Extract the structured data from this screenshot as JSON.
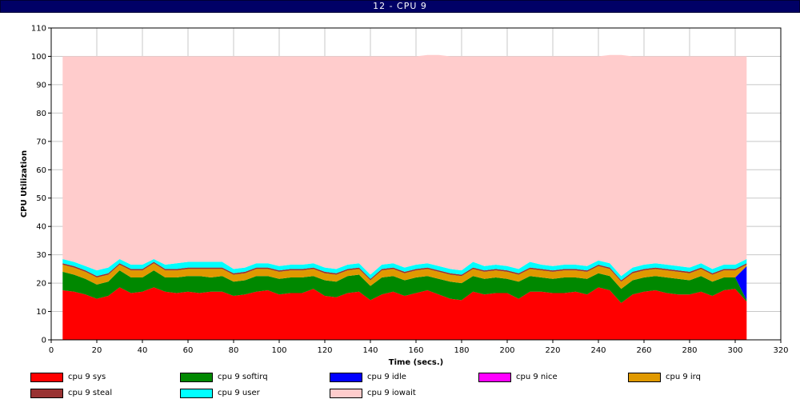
{
  "window": {
    "title": "12 - CPU 9"
  },
  "chart_data": {
    "type": "area",
    "stacked": true,
    "xlabel": "Time (secs.)",
    "ylabel": "CPU Utilization",
    "xlim": [
      0,
      320
    ],
    "ylim": [
      0,
      110
    ],
    "xticks": [
      0,
      20,
      40,
      60,
      80,
      100,
      120,
      140,
      160,
      180,
      200,
      220,
      240,
      260,
      280,
      300,
      320
    ],
    "yticks": [
      0,
      10,
      20,
      30,
      40,
      50,
      60,
      70,
      80,
      90,
      100,
      110
    ],
    "grid": true,
    "legend_position": "bottom",
    "x": [
      5,
      10,
      15,
      20,
      25,
      30,
      35,
      40,
      45,
      50,
      55,
      60,
      65,
      70,
      75,
      80,
      85,
      90,
      95,
      100,
      105,
      110,
      115,
      120,
      125,
      130,
      135,
      140,
      145,
      150,
      155,
      160,
      165,
      170,
      175,
      180,
      185,
      190,
      195,
      200,
      205,
      210,
      215,
      220,
      225,
      230,
      235,
      240,
      245,
      250,
      255,
      260,
      265,
      270,
      275,
      280,
      285,
      290,
      295,
      300,
      305
    ],
    "series": [
      {
        "name": "cpu 9 sys",
        "color": "#ff0000",
        "values": [
          17.5,
          17,
          16,
          14.5,
          15.5,
          18.5,
          16.5,
          17,
          18.5,
          17,
          16.5,
          17,
          16.5,
          17,
          17,
          15.5,
          16,
          17,
          17.5,
          16,
          16.5,
          16.5,
          18,
          15.5,
          15,
          16.5,
          17,
          14,
          16,
          17,
          15.5,
          16.5,
          17.5,
          16,
          14.5,
          14,
          17,
          16,
          16.5,
          16.5,
          14.5,
          17,
          17,
          16.5,
          16.5,
          17,
          16,
          18.5,
          17.5,
          13,
          16,
          17,
          17.5,
          16.5,
          16,
          16,
          17,
          15.5,
          17.5,
          18,
          13.5
        ]
      },
      {
        "name": "cpu 9 softirq",
        "color": "#008800",
        "values": [
          6.5,
          6,
          5.5,
          5,
          5,
          6,
          5.5,
          5,
          6,
          5,
          5.5,
          5.5,
          6,
          5,
          5.5,
          5,
          5,
          5.5,
          5,
          5.5,
          5.5,
          5.5,
          4.5,
          5.5,
          5.5,
          6,
          6,
          5,
          6,
          5.5,
          5.5,
          5.5,
          5,
          5.5,
          6,
          6,
          5.5,
          5.5,
          5.5,
          5,
          6,
          5.5,
          5,
          5,
          5.5,
          5,
          5.5,
          5,
          5,
          5,
          5,
          5,
          5,
          5.5,
          5.5,
          5,
          5.5,
          5,
          4.5,
          4,
          0.5
        ]
      },
      {
        "name": "cpu 9 idle",
        "color": "#0000ff",
        "values": [
          0,
          0,
          0,
          0,
          0,
          0,
          0,
          0,
          0,
          0,
          0,
          0,
          0,
          0,
          0,
          0,
          0,
          0,
          0,
          0,
          0,
          0,
          0,
          0,
          0,
          0,
          0,
          0,
          0,
          0,
          0,
          0,
          0,
          0,
          0,
          0,
          0,
          0,
          0,
          0,
          0,
          0,
          0,
          0,
          0,
          0,
          0,
          0,
          0,
          0,
          0,
          0,
          0,
          0,
          0,
          0,
          0,
          0,
          0,
          0,
          12
        ]
      },
      {
        "name": "cpu 9 nice",
        "color": "#ff00ff",
        "values": [
          0,
          0,
          0,
          0,
          0,
          0,
          0,
          0,
          0,
          0,
          0,
          0,
          0,
          0,
          0,
          0,
          0,
          0,
          0,
          0,
          0,
          0,
          0,
          0,
          0,
          0,
          0,
          0,
          0,
          0,
          0,
          0,
          0,
          0,
          0,
          0,
          0,
          0,
          0,
          0,
          0,
          0,
          0,
          0,
          0,
          0,
          0,
          0,
          0,
          0,
          0,
          0,
          0,
          0,
          0,
          0,
          0,
          0,
          0,
          0,
          0
        ]
      },
      {
        "name": "cpu 9 irq",
        "color": "#e09900",
        "values": [
          2.5,
          2.5,
          2.5,
          2.5,
          2.5,
          2,
          2.5,
          2.5,
          2.5,
          2.5,
          2.5,
          2.5,
          2.5,
          3,
          2.5,
          2.5,
          2.5,
          2.5,
          2.5,
          2.5,
          2.5,
          2.5,
          2.5,
          2.5,
          2.5,
          2,
          2,
          2,
          2.5,
          2.5,
          2.5,
          2.5,
          2.5,
          2.5,
          2.5,
          2.5,
          2.5,
          2.5,
          2.5,
          2.5,
          2.5,
          2.5,
          2.5,
          2.5,
          2.5,
          2.5,
          2.5,
          2.5,
          2.5,
          2.5,
          2.5,
          2.5,
          2.5,
          2.5,
          2.5,
          2.5,
          2.5,
          2.5,
          2.5,
          2.5,
          0.5
        ]
      },
      {
        "name": "cpu 9 steal",
        "color": "#993333",
        "values": [
          0.5,
          0.5,
          0.5,
          0.5,
          0.5,
          0.5,
          0.5,
          0.5,
          0.5,
          0.5,
          0.5,
          0.5,
          0.5,
          0.5,
          0.5,
          0.5,
          0.5,
          0.5,
          0.5,
          0.5,
          0.5,
          0.5,
          0.5,
          0.5,
          0.5,
          0.5,
          0.5,
          0.5,
          0.5,
          0.5,
          0.5,
          0.5,
          0.5,
          0.5,
          0.5,
          0.5,
          0.5,
          0.5,
          0.5,
          0.5,
          0.5,
          0.5,
          0.5,
          0.5,
          0.5,
          0.5,
          0.5,
          0.5,
          0.5,
          0.5,
          0.5,
          0.5,
          0.5,
          0.5,
          0.5,
          0.5,
          0.5,
          0.5,
          0.5,
          0.5,
          0.5
        ]
      },
      {
        "name": "cpu 9 user",
        "color": "#00ffff",
        "values": [
          1.5,
          1.5,
          1.5,
          2,
          2,
          1.5,
          1.5,
          1.5,
          1,
          1.5,
          2,
          2,
          2,
          2,
          2,
          1.5,
          1.5,
          1.5,
          1.5,
          1.5,
          1.5,
          1.5,
          1.5,
          1.5,
          1.5,
          1.5,
          1.5,
          1.5,
          1.5,
          1.5,
          1.5,
          1.5,
          1.5,
          1.5,
          1.5,
          1.5,
          2,
          1.5,
          1.5,
          1.5,
          1.5,
          2,
          1.5,
          1.5,
          1.5,
          1.5,
          1.5,
          1.5,
          1.5,
          1.5,
          1.5,
          1.5,
          1.5,
          1.5,
          1.5,
          1.5,
          1.5,
          1.5,
          1.5,
          1.5,
          1.5
        ]
      },
      {
        "name": "cpu 9 iowait",
        "color": "#ffcccc",
        "values": [
          71.5,
          72.5,
          74,
          75.5,
          74.5,
          71.5,
          73.5,
          73.5,
          71.5,
          73.5,
          73,
          72.5,
          72.5,
          72.5,
          72.5,
          75,
          74.5,
          73,
          73,
          74,
          73.5,
          73.5,
          73,
          74.5,
          75,
          73.5,
          73,
          77,
          73.5,
          73,
          74.5,
          73.5,
          73.5,
          74.5,
          75,
          75.5,
          72.5,
          74,
          73.5,
          74,
          75,
          72.5,
          73.5,
          74,
          73.5,
          73.5,
          74,
          72,
          73.5,
          78,
          74.5,
          73.5,
          73,
          73.5,
          74,
          74.5,
          73,
          75,
          73.5,
          73.5,
          71.5
        ]
      }
    ],
    "legend_order": [
      "cpu 9 sys",
      "cpu 9 softirq",
      "cpu 9 idle",
      "cpu 9 nice",
      "cpu 9 irq",
      "cpu 9 steal",
      "cpu 9 user",
      "cpu 9 iowait"
    ]
  }
}
